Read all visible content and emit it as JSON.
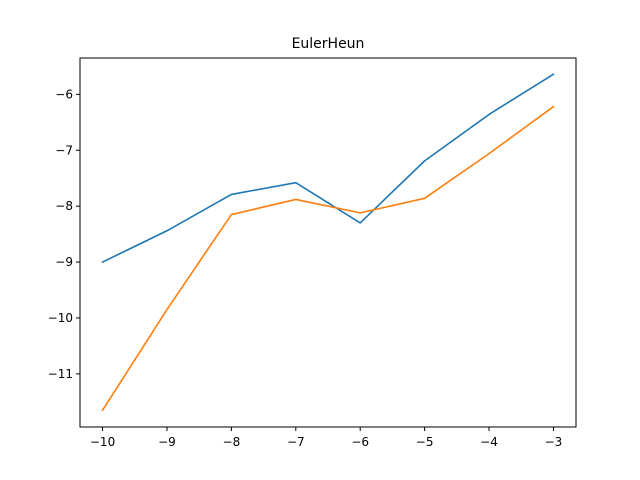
{
  "chart_data": {
    "type": "line",
    "title": "EulerHeun",
    "xlabel": "",
    "ylabel": "",
    "x": [
      -10,
      -9,
      -8,
      -7,
      -6,
      -5,
      -4,
      -3
    ],
    "series": [
      {
        "color": "#1f77b4",
        "values": [
          -9.0,
          -8.44,
          -7.79,
          -7.58,
          -8.3,
          -7.19,
          -6.36,
          -5.64
        ]
      },
      {
        "color": "#ff7f0e",
        "values": [
          -11.65,
          -9.85,
          -8.15,
          -7.88,
          -8.12,
          -7.86,
          -7.06,
          -6.22
        ]
      }
    ],
    "xlim": [
      -10.35,
      -2.65
    ],
    "ylim": [
      -11.95,
      -5.35
    ],
    "xticks": [
      -10,
      -9,
      -8,
      -7,
      -6,
      -5,
      -4,
      -3
    ],
    "xtick_labels": [
      "−10",
      "−9",
      "−8",
      "−7",
      "−6",
      "−5",
      "−4",
      "−3"
    ],
    "yticks": [
      -11,
      -10,
      -9,
      -8,
      -7,
      -6
    ],
    "ytick_labels": [
      "−11",
      "−10",
      "−9",
      "−8",
      "−7",
      "−6"
    ],
    "grid": false,
    "legend": false
  }
}
